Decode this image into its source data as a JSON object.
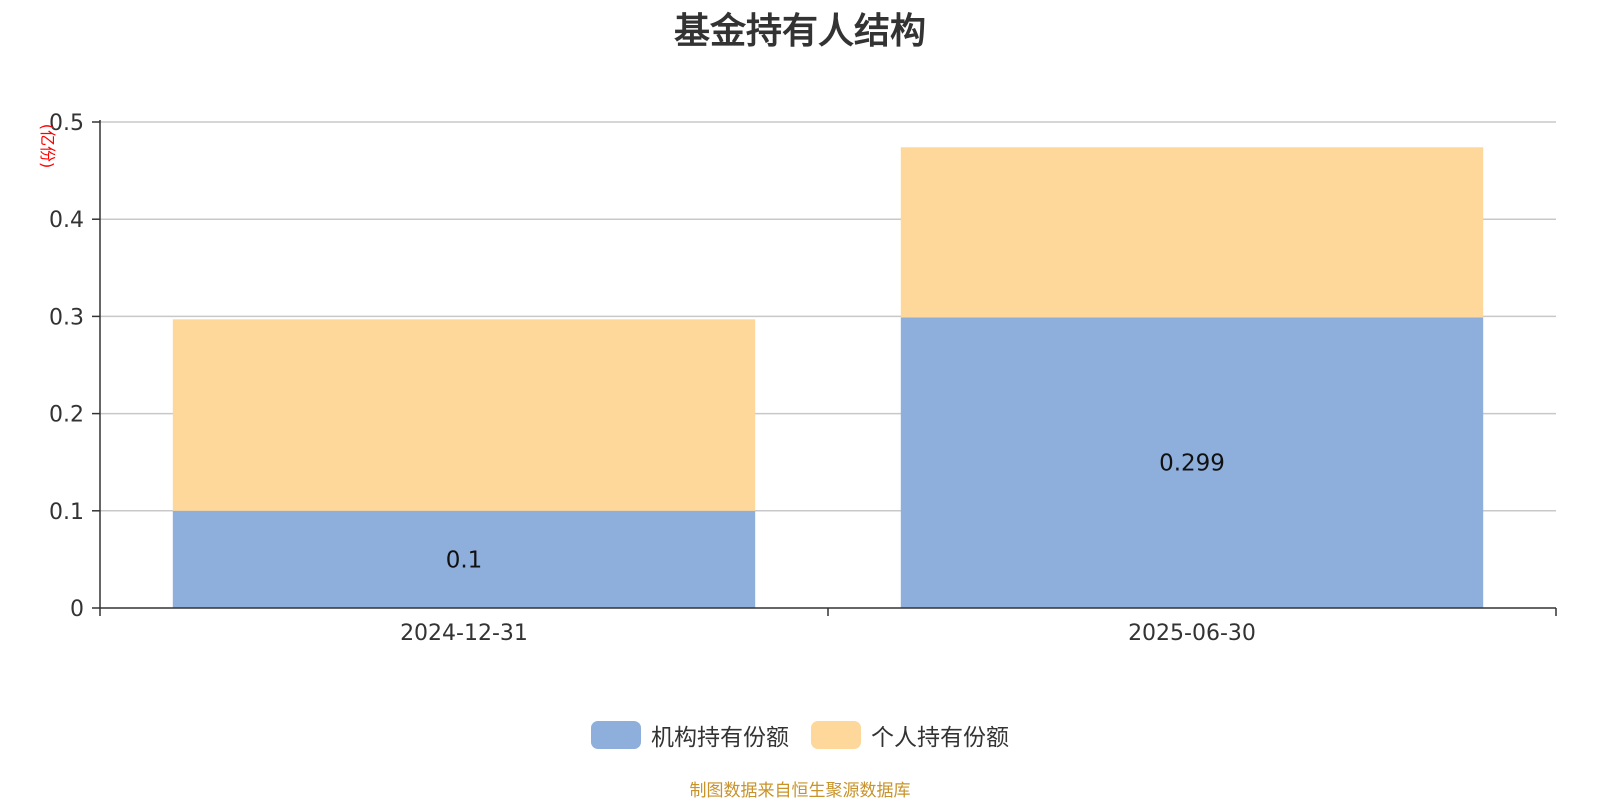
{
  "chart_data": {
    "type": "bar",
    "stacked": true,
    "title": "基金持有人结构",
    "unit_label": "(亿份)",
    "categories": [
      "2024-12-31",
      "2025-06-30"
    ],
    "series": [
      {
        "name": "机构持有份额",
        "color": "#8eaedb",
        "values": [
          0.1,
          0.299
        ],
        "labels": [
          "0.1",
          "0.299"
        ]
      },
      {
        "name": "个人持有份额",
        "color": "#fed89b",
        "values": [
          0.197,
          0.175
        ]
      }
    ],
    "yticks": [
      "0",
      "0.1",
      "0.2",
      "0.3",
      "0.4",
      "0.5"
    ],
    "ylim": [
      0,
      0.5
    ],
    "grid": true,
    "legend_position": "bottom-center",
    "source": "制图数据来自恒生聚源数据库"
  }
}
